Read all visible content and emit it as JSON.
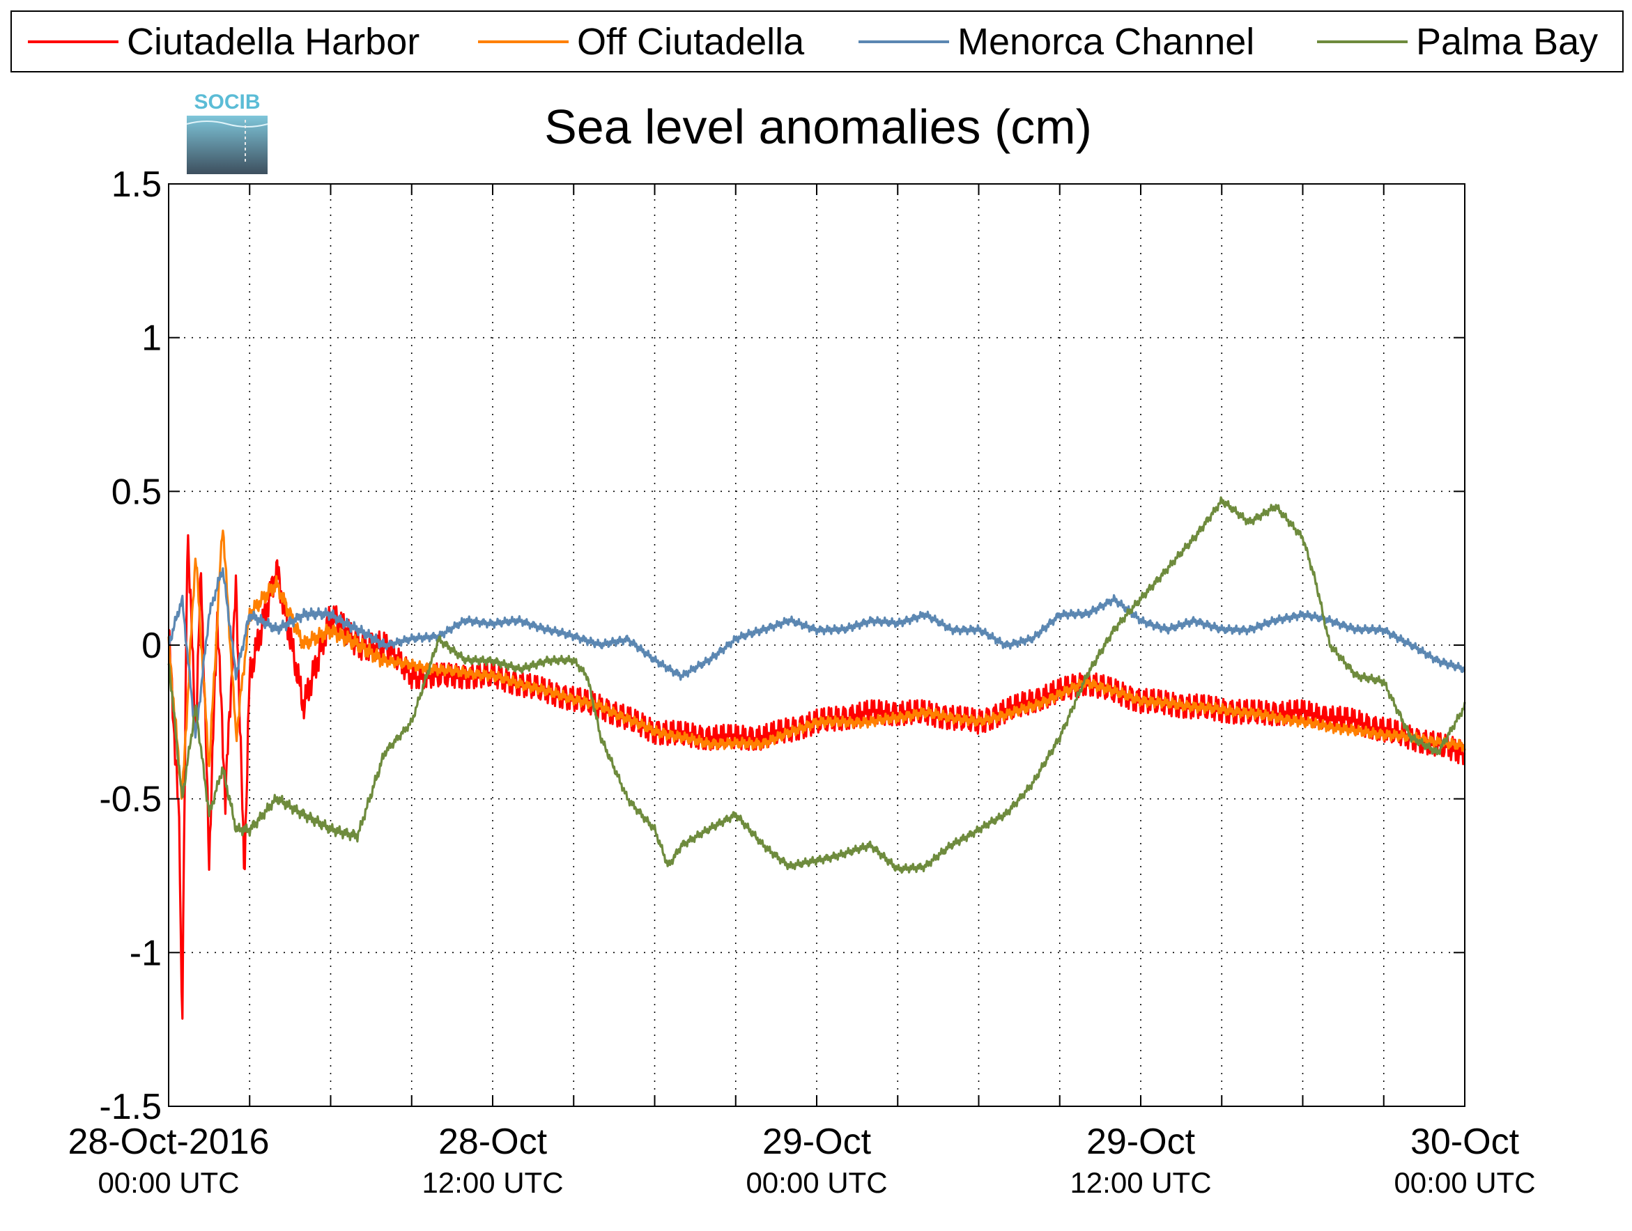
{
  "logo": {
    "text": "SOCIB"
  },
  "chart_data": {
    "type": "line",
    "title": "Sea level anomalies (cm)",
    "xlabel": "",
    "ylabel": "",
    "ylim": [
      -1.5,
      1.5
    ],
    "xlim_hours": [
      0,
      48
    ],
    "yticks": [
      "1.5",
      "1",
      "0.5",
      "0",
      "-0.5",
      "-1",
      "-1.5"
    ],
    "xtick_labels": [
      {
        "hour": 0,
        "date": "28-Oct-2016",
        "time": "00:00 UTC"
      },
      {
        "hour": 12,
        "date": "28-Oct",
        "time": "12:00 UTC"
      },
      {
        "hour": 24,
        "date": "29-Oct",
        "time": "00:00 UTC"
      },
      {
        "hour": 36,
        "date": "29-Oct",
        "time": "12:00 UTC"
      },
      {
        "hour": 48,
        "date": "30-Oct",
        "time": "00:00 UTC"
      }
    ],
    "minor_ticks_every_hours": 3,
    "grid": true,
    "legend_position": "top",
    "series": [
      {
        "name": "Ciutadella Harbor",
        "color": "#ff0000",
        "anchors": [
          [
            0,
            0.05
          ],
          [
            0.4,
            -0.6
          ],
          [
            0.5,
            -1.25
          ],
          [
            0.7,
            0.4
          ],
          [
            1.0,
            -0.3
          ],
          [
            1.2,
            0.25
          ],
          [
            1.5,
            -0.7
          ],
          [
            1.8,
            0.1
          ],
          [
            2.1,
            -0.5
          ],
          [
            2.5,
            0.2
          ],
          [
            2.8,
            -0.75
          ],
          [
            3,
            -0.1
          ],
          [
            4,
            0.25
          ],
          [
            5,
            -0.2
          ],
          [
            6,
            0.1
          ],
          [
            7,
            0.0
          ],
          [
            8,
            0.0
          ],
          [
            9,
            -0.1
          ],
          [
            10,
            -0.1
          ],
          [
            12,
            -0.1
          ],
          [
            14,
            -0.15
          ],
          [
            16,
            -0.2
          ],
          [
            18,
            -0.28
          ],
          [
            20,
            -0.3
          ],
          [
            22,
            -0.3
          ],
          [
            24,
            -0.25
          ],
          [
            26,
            -0.22
          ],
          [
            28,
            -0.22
          ],
          [
            30,
            -0.25
          ],
          [
            32,
            -0.18
          ],
          [
            34,
            -0.12
          ],
          [
            36,
            -0.18
          ],
          [
            38,
            -0.2
          ],
          [
            40,
            -0.22
          ],
          [
            42,
            -0.22
          ],
          [
            44,
            -0.25
          ],
          [
            46,
            -0.3
          ],
          [
            48,
            -0.35
          ]
        ],
        "noise": [
          0.06,
          0.05
        ]
      },
      {
        "name": "Off Ciutadella",
        "color": "#ff8000",
        "anchors": [
          [
            0,
            0.0
          ],
          [
            0.5,
            -0.5
          ],
          [
            1.0,
            0.3
          ],
          [
            1.5,
            -0.4
          ],
          [
            2.0,
            0.4
          ],
          [
            2.5,
            -0.3
          ],
          [
            3,
            0.1
          ],
          [
            4,
            0.2
          ],
          [
            5,
            0.0
          ],
          [
            6,
            0.05
          ],
          [
            8,
            -0.05
          ],
          [
            10,
            -0.08
          ],
          [
            12,
            -0.1
          ],
          [
            14,
            -0.15
          ],
          [
            16,
            -0.2
          ],
          [
            18,
            -0.28
          ],
          [
            20,
            -0.32
          ],
          [
            22,
            -0.32
          ],
          [
            24,
            -0.25
          ],
          [
            26,
            -0.25
          ],
          [
            28,
            -0.22
          ],
          [
            30,
            -0.25
          ],
          [
            32,
            -0.2
          ],
          [
            34,
            -0.12
          ],
          [
            36,
            -0.18
          ],
          [
            38,
            -0.2
          ],
          [
            40,
            -0.22
          ],
          [
            42,
            -0.25
          ],
          [
            44,
            -0.28
          ],
          [
            46,
            -0.3
          ],
          [
            48,
            -0.33
          ]
        ],
        "noise": [
          0.03,
          0.02
        ]
      },
      {
        "name": "Menorca Channel",
        "color": "#5b87b2",
        "anchors": [
          [
            0,
            0.0
          ],
          [
            0.5,
            0.15
          ],
          [
            1,
            -0.3
          ],
          [
            1.5,
            0.1
          ],
          [
            2,
            0.25
          ],
          [
            2.5,
            -0.1
          ],
          [
            3,
            0.1
          ],
          [
            4,
            0.05
          ],
          [
            5,
            0.1
          ],
          [
            6,
            0.1
          ],
          [
            7,
            0.05
          ],
          [
            8,
            0.0
          ],
          [
            9,
            0.02
          ],
          [
            10,
            0.03
          ],
          [
            11,
            0.08
          ],
          [
            12,
            0.07
          ],
          [
            13,
            0.08
          ],
          [
            14,
            0.05
          ],
          [
            15,
            0.03
          ],
          [
            16,
            0.0
          ],
          [
            17,
            0.02
          ],
          [
            18,
            -0.05
          ],
          [
            19,
            -0.1
          ],
          [
            20,
            -0.05
          ],
          [
            21,
            0.02
          ],
          [
            22,
            0.05
          ],
          [
            23,
            0.08
          ],
          [
            24,
            0.05
          ],
          [
            25,
            0.05
          ],
          [
            26,
            0.08
          ],
          [
            27,
            0.07
          ],
          [
            28,
            0.1
          ],
          [
            29,
            0.05
          ],
          [
            30,
            0.05
          ],
          [
            31,
            0.0
          ],
          [
            32,
            0.02
          ],
          [
            33,
            0.1
          ],
          [
            34,
            0.1
          ],
          [
            35,
            0.15
          ],
          [
            36,
            0.08
          ],
          [
            37,
            0.05
          ],
          [
            38,
            0.08
          ],
          [
            39,
            0.05
          ],
          [
            40,
            0.05
          ],
          [
            41,
            0.08
          ],
          [
            42,
            0.1
          ],
          [
            43,
            0.08
          ],
          [
            44,
            0.05
          ],
          [
            45,
            0.05
          ],
          [
            46,
            0.0
          ],
          [
            47,
            -0.05
          ],
          [
            48,
            -0.08
          ]
        ],
        "noise": [
          0.02,
          0.015
        ]
      },
      {
        "name": "Palma Bay",
        "color": "#6e8b3d",
        "anchors": [
          [
            0,
            -0.05
          ],
          [
            0.5,
            -0.5
          ],
          [
            1,
            -0.2
          ],
          [
            1.5,
            -0.55
          ],
          [
            2,
            -0.4
          ],
          [
            2.5,
            -0.6
          ],
          [
            3,
            -0.6
          ],
          [
            4,
            -0.5
          ],
          [
            5,
            -0.55
          ],
          [
            6,
            -0.6
          ],
          [
            7,
            -0.62
          ],
          [
            8,
            -0.35
          ],
          [
            9,
            -0.25
          ],
          [
            10,
            0.02
          ],
          [
            11,
            -0.05
          ],
          [
            12,
            -0.05
          ],
          [
            13,
            -0.08
          ],
          [
            14,
            -0.05
          ],
          [
            15,
            -0.05
          ],
          [
            15.5,
            -0.1
          ],
          [
            16,
            -0.3
          ],
          [
            17,
            -0.5
          ],
          [
            18,
            -0.6
          ],
          [
            18.5,
            -0.72
          ],
          [
            19,
            -0.65
          ],
          [
            20,
            -0.6
          ],
          [
            21,
            -0.55
          ],
          [
            22,
            -0.65
          ],
          [
            23,
            -0.72
          ],
          [
            24,
            -0.7
          ],
          [
            25,
            -0.68
          ],
          [
            26,
            -0.65
          ],
          [
            27,
            -0.73
          ],
          [
            28,
            -0.72
          ],
          [
            29,
            -0.65
          ],
          [
            30,
            -0.6
          ],
          [
            31,
            -0.55
          ],
          [
            32,
            -0.45
          ],
          [
            33,
            -0.3
          ],
          [
            34,
            -0.1
          ],
          [
            35,
            0.05
          ],
          [
            36,
            0.15
          ],
          [
            37,
            0.25
          ],
          [
            38,
            0.35
          ],
          [
            39,
            0.47
          ],
          [
            40,
            0.4
          ],
          [
            41,
            0.45
          ],
          [
            42,
            0.35
          ],
          [
            42.5,
            0.2
          ],
          [
            43,
            0.0
          ],
          [
            44,
            -0.1
          ],
          [
            45,
            -0.12
          ],
          [
            46,
            -0.3
          ],
          [
            47,
            -0.35
          ],
          [
            48,
            -0.2
          ]
        ],
        "noise": [
          0.02,
          0.015
        ]
      }
    ]
  }
}
